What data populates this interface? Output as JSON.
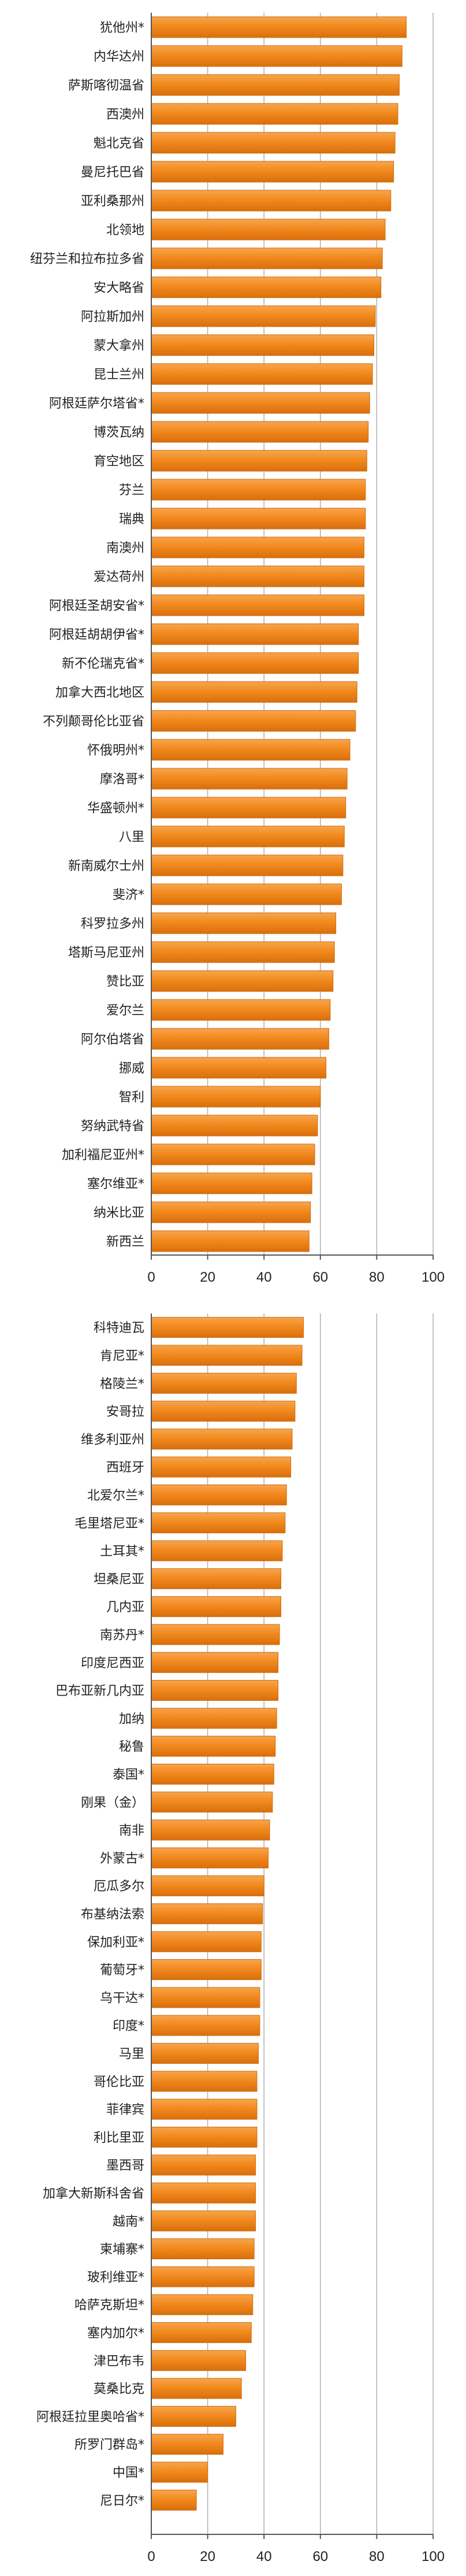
{
  "colors": {
    "bar": "#f28a1e",
    "bar_edge": "#d06a08",
    "grid": "#b0b0b0"
  },
  "chart_data": [
    {
      "type": "bar",
      "orientation": "horizontal",
      "xlim": [
        0,
        100
      ],
      "xticks": [
        "0",
        "20",
        "40",
        "60",
        "80",
        "100"
      ],
      "grid": true,
      "legend": "none",
      "categories": [
        "犹他州*",
        "内华达州",
        "萨斯喀彻温省",
        "西澳州",
        "魁北克省",
        "曼尼托巴省",
        "亚利桑那州",
        "北领地",
        "纽芬兰和拉布拉多省",
        "安大略省",
        "阿拉斯加州",
        "蒙大拿州",
        "昆士兰州",
        "阿根廷萨尔塔省*",
        "博茨瓦纳",
        "育空地区",
        "芬兰",
        "瑞典",
        "南澳州",
        "爱达荷州",
        "阿根廷圣胡安省*",
        "阿根廷胡胡伊省*",
        "新不伦瑞克省*",
        "加拿大西北地区",
        "不列颠哥伦比亚省",
        "怀俄明州*",
        "摩洛哥*",
        "华盛顿州*",
        "八里",
        "新南威尔士州",
        "斐济*",
        "科罗拉多州",
        "塔斯马尼亚州",
        "赞比亚",
        "爱尔兰",
        "阿尔伯塔省",
        "挪威",
        "智利",
        "努纳武特省",
        "加利福尼亚州*",
        "塞尔维亚*",
        "纳米比亚",
        "新西兰"
      ],
      "values": [
        90.5,
        89,
        88,
        87.5,
        86.5,
        86,
        85,
        83,
        82,
        81.5,
        79.5,
        79,
        78.5,
        77.5,
        77,
        76.5,
        76,
        76,
        75.5,
        75.5,
        75.5,
        73.5,
        73.5,
        73,
        72.5,
        70.5,
        69.5,
        69,
        68.5,
        68,
        67.5,
        65.5,
        65,
        64.5,
        63.5,
        63,
        62,
        60,
        59,
        58,
        57,
        56.5,
        56
      ]
    },
    {
      "type": "bar",
      "orientation": "horizontal",
      "xlim": [
        0,
        100
      ],
      "xticks": [
        "0",
        "20",
        "40",
        "60",
        "80",
        "100"
      ],
      "grid": true,
      "legend": "none",
      "categories": [
        "科特迪瓦",
        "肯尼亚*",
        "格陵兰*",
        "安哥拉",
        "维多利亚州",
        "西班牙",
        "北爱尔兰*",
        "毛里塔尼亚*",
        "土耳其*",
        "坦桑尼亚",
        "几内亚",
        "南苏丹*",
        "印度尼西亚",
        "巴布亚新几内亚",
        "加纳",
        "秘鲁",
        "泰国*",
        "刚果（金）",
        "南非",
        "外蒙古*",
        "厄瓜多尔",
        "布基纳法索",
        "保加利亚*",
        "葡萄牙*",
        "乌干达*",
        "印度*",
        "马里",
        "哥伦比亚",
        "菲律宾",
        "利比里亚",
        "墨西哥",
        "加拿大新斯科舍省",
        "越南*",
        "柬埔寨*",
        "玻利维亚*",
        "哈萨克斯坦*",
        "塞内加尔*",
        "津巴布韦",
        "莫桑比克",
        "阿根廷拉里奥哈省*",
        "所罗门群岛*",
        "中国*",
        "尼日尔*"
      ],
      "values": [
        54,
        53.5,
        51.5,
        51,
        50,
        49.5,
        48,
        47.5,
        46.5,
        46,
        46,
        45.5,
        45,
        45,
        44.5,
        44,
        43.5,
        43,
        42,
        41.5,
        40,
        39.5,
        39,
        39,
        38.5,
        38.5,
        38,
        37.5,
        37.5,
        37.5,
        37,
        37,
        37,
        36.5,
        36.5,
        36,
        35.5,
        33.5,
        32,
        30,
        25.5,
        20,
        16
      ]
    }
  ]
}
